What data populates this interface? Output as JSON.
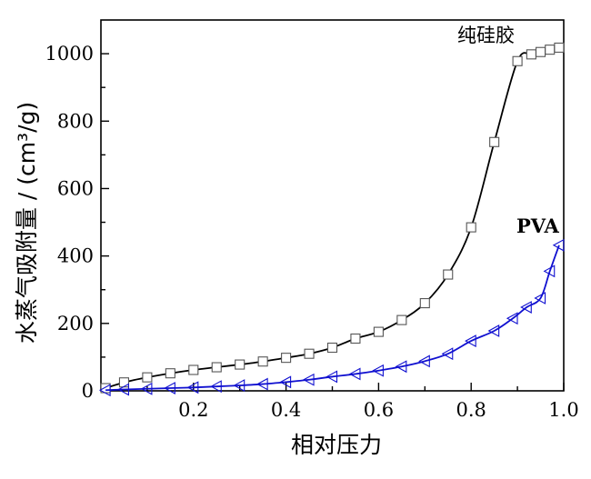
{
  "chart_data": {
    "type": "line",
    "xlabel": "相对压力",
    "ylabel": "水蒸气吸附量 / (cm³/g)",
    "xlim": [
      0,
      1.0
    ],
    "ylim": [
      0,
      1100
    ],
    "x_ticks": [
      "0.2",
      "0.4",
      "0.6",
      "0.8",
      "1.0"
    ],
    "y_ticks": [
      "0",
      "200",
      "400",
      "600",
      "800",
      "1000"
    ],
    "grid": false,
    "series": [
      {
        "name": "纯硅胶",
        "color": "#000000",
        "marker": "square",
        "x": [
          0.01,
          0.05,
          0.1,
          0.15,
          0.2,
          0.25,
          0.3,
          0.35,
          0.4,
          0.45,
          0.5,
          0.55,
          0.6,
          0.65,
          0.7,
          0.75,
          0.8,
          0.85,
          0.9,
          0.93,
          0.95,
          0.97,
          0.99
        ],
        "y": [
          8,
          25,
          40,
          52,
          62,
          70,
          78,
          87,
          98,
          110,
          128,
          155,
          175,
          210,
          260,
          345,
          485,
          738,
          978,
          998,
          1005,
          1012,
          1018
        ]
      },
      {
        "name": "PVA",
        "color": "#1010d0",
        "marker": "triangle-left",
        "x": [
          0.01,
          0.05,
          0.1,
          0.15,
          0.2,
          0.25,
          0.3,
          0.35,
          0.4,
          0.45,
          0.5,
          0.55,
          0.6,
          0.65,
          0.7,
          0.75,
          0.8,
          0.85,
          0.89,
          0.92,
          0.95,
          0.97,
          0.99
        ],
        "y": [
          2,
          4,
          6,
          8,
          10,
          13,
          16,
          20,
          26,
          33,
          42,
          50,
          60,
          72,
          88,
          110,
          148,
          178,
          215,
          248,
          275,
          355,
          432
        ]
      }
    ]
  }
}
